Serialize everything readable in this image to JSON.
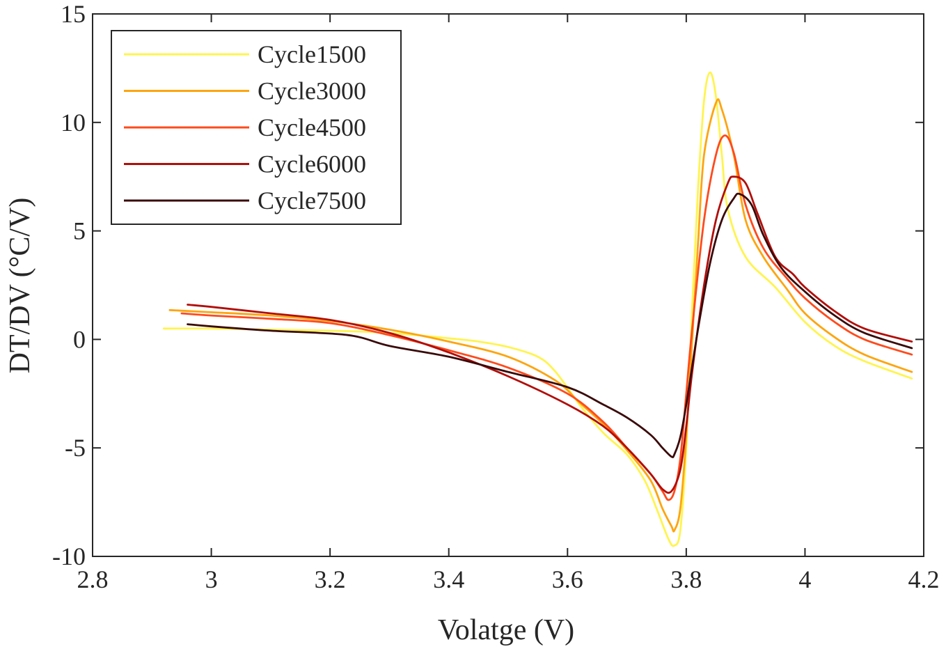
{
  "chart_data": {
    "type": "line",
    "title": "",
    "xlabel": "Volatge (V)",
    "ylabel": "DT/DV (°C/V)",
    "xlim": [
      2.8,
      4.2
    ],
    "ylim": [
      -10,
      15
    ],
    "xticks": [
      "2.8",
      "3",
      "3.2",
      "3.4",
      "3.6",
      "3.8",
      "4",
      "4.2"
    ],
    "yticks": [
      "-10",
      "-5",
      "0",
      "5",
      "10",
      "15"
    ],
    "grid": false,
    "legend_position": "top-left",
    "series": [
      {
        "name": "Cycle1500",
        "color": "#FFF44F",
        "points": [
          [
            2.92,
            0.5
          ],
          [
            3.0,
            0.5
          ],
          [
            3.1,
            0.45
          ],
          [
            3.2,
            0.4
          ],
          [
            3.3,
            0.3
          ],
          [
            3.4,
            0.05
          ],
          [
            3.45,
            -0.1
          ],
          [
            3.5,
            -0.35
          ],
          [
            3.55,
            -0.8
          ],
          [
            3.58,
            -1.5
          ],
          [
            3.62,
            -3.0
          ],
          [
            3.66,
            -4.3
          ],
          [
            3.7,
            -5.3
          ],
          [
            3.73,
            -6.5
          ],
          [
            3.75,
            -7.8
          ],
          [
            3.77,
            -9.2
          ],
          [
            3.78,
            -9.5
          ],
          [
            3.79,
            -8.8
          ],
          [
            3.8,
            -5.0
          ],
          [
            3.81,
            1.5
          ],
          [
            3.82,
            7.0
          ],
          [
            3.83,
            11.0
          ],
          [
            3.84,
            12.3
          ],
          [
            3.85,
            11.2
          ],
          [
            3.86,
            8.5
          ],
          [
            3.87,
            6.0
          ],
          [
            3.9,
            3.8
          ],
          [
            3.95,
            2.4
          ],
          [
            4.0,
            0.8
          ],
          [
            4.05,
            -0.3
          ],
          [
            4.1,
            -1.0
          ],
          [
            4.18,
            -1.8
          ]
        ]
      },
      {
        "name": "Cycle3000",
        "color": "#FDA50F",
        "points": [
          [
            2.93,
            1.35
          ],
          [
            3.0,
            1.25
          ],
          [
            3.1,
            1.1
          ],
          [
            3.2,
            0.85
          ],
          [
            3.3,
            0.45
          ],
          [
            3.4,
            -0.1
          ],
          [
            3.5,
            -0.8
          ],
          [
            3.58,
            -1.9
          ],
          [
            3.62,
            -2.9
          ],
          [
            3.66,
            -3.9
          ],
          [
            3.7,
            -5.1
          ],
          [
            3.74,
            -6.5
          ],
          [
            3.76,
            -7.8
          ],
          [
            3.775,
            -8.6
          ],
          [
            3.78,
            -8.8
          ],
          [
            3.79,
            -7.8
          ],
          [
            3.8,
            -4.5
          ],
          [
            3.81,
            0.0
          ],
          [
            3.82,
            4.5
          ],
          [
            3.83,
            8.5
          ],
          [
            3.85,
            10.9
          ],
          [
            3.86,
            10.6
          ],
          [
            3.88,
            8.5
          ],
          [
            3.9,
            5.5
          ],
          [
            3.93,
            3.8
          ],
          [
            3.97,
            2.3
          ],
          [
            4.0,
            1.2
          ],
          [
            4.05,
            0.1
          ],
          [
            4.1,
            -0.7
          ],
          [
            4.18,
            -1.5
          ]
        ]
      },
      {
        "name": "Cycle4500",
        "color": "#FF4A1C",
        "points": [
          [
            2.95,
            1.2
          ],
          [
            3.0,
            1.1
          ],
          [
            3.1,
            0.95
          ],
          [
            3.2,
            0.75
          ],
          [
            3.3,
            0.2
          ],
          [
            3.4,
            -0.5
          ],
          [
            3.5,
            -1.3
          ],
          [
            3.6,
            -2.5
          ],
          [
            3.66,
            -3.8
          ],
          [
            3.7,
            -5.0
          ],
          [
            3.74,
            -6.2
          ],
          [
            3.76,
            -7.0
          ],
          [
            3.77,
            -7.4
          ],
          [
            3.78,
            -7.0
          ],
          [
            3.79,
            -5.5
          ],
          [
            3.8,
            -2.5
          ],
          [
            3.81,
            0.5
          ],
          [
            3.83,
            5.5
          ],
          [
            3.85,
            8.5
          ],
          [
            3.865,
            9.4
          ],
          [
            3.88,
            8.6
          ],
          [
            3.9,
            6.2
          ],
          [
            3.93,
            4.2
          ],
          [
            3.97,
            2.8
          ],
          [
            4.0,
            1.9
          ],
          [
            4.05,
            0.8
          ],
          [
            4.1,
            0.0
          ],
          [
            4.18,
            -0.7
          ]
        ]
      },
      {
        "name": "Cycle6000",
        "color": "#B10E0A",
        "points": [
          [
            2.96,
            1.6
          ],
          [
            3.0,
            1.5
          ],
          [
            3.1,
            1.2
          ],
          [
            3.2,
            0.9
          ],
          [
            3.3,
            0.3
          ],
          [
            3.4,
            -0.6
          ],
          [
            3.5,
            -1.7
          ],
          [
            3.6,
            -3.0
          ],
          [
            3.66,
            -4.0
          ],
          [
            3.7,
            -5.0
          ],
          [
            3.74,
            -6.2
          ],
          [
            3.76,
            -6.9
          ],
          [
            3.775,
            -7.0
          ],
          [
            3.79,
            -6.0
          ],
          [
            3.8,
            -4.0
          ],
          [
            3.81,
            -1.5
          ],
          [
            3.83,
            2.5
          ],
          [
            3.85,
            5.5
          ],
          [
            3.87,
            7.2
          ],
          [
            3.88,
            7.5
          ],
          [
            3.9,
            7.2
          ],
          [
            3.92,
            5.8
          ],
          [
            3.95,
            3.8
          ],
          [
            3.98,
            3.0
          ],
          [
            4.0,
            2.4
          ],
          [
            4.05,
            1.3
          ],
          [
            4.1,
            0.5
          ],
          [
            4.18,
            -0.1
          ]
        ]
      },
      {
        "name": "Cycle7500",
        "color": "#3A0A0A",
        "points": [
          [
            2.96,
            0.7
          ],
          [
            3.0,
            0.6
          ],
          [
            3.1,
            0.4
          ],
          [
            3.23,
            0.2
          ],
          [
            3.3,
            -0.3
          ],
          [
            3.4,
            -0.8
          ],
          [
            3.5,
            -1.5
          ],
          [
            3.6,
            -2.2
          ],
          [
            3.66,
            -3.0
          ],
          [
            3.7,
            -3.6
          ],
          [
            3.74,
            -4.4
          ],
          [
            3.76,
            -5.0
          ],
          [
            3.775,
            -5.4
          ],
          [
            3.78,
            -5.3
          ],
          [
            3.79,
            -4.5
          ],
          [
            3.8,
            -3.0
          ],
          [
            3.82,
            0.5
          ],
          [
            3.84,
            3.5
          ],
          [
            3.86,
            5.5
          ],
          [
            3.88,
            6.5
          ],
          [
            3.89,
            6.7
          ],
          [
            3.91,
            6.2
          ],
          [
            3.93,
            4.8
          ],
          [
            3.96,
            3.3
          ],
          [
            4.0,
            2.2
          ],
          [
            4.05,
            1.1
          ],
          [
            4.1,
            0.3
          ],
          [
            4.18,
            -0.4
          ]
        ]
      }
    ]
  }
}
